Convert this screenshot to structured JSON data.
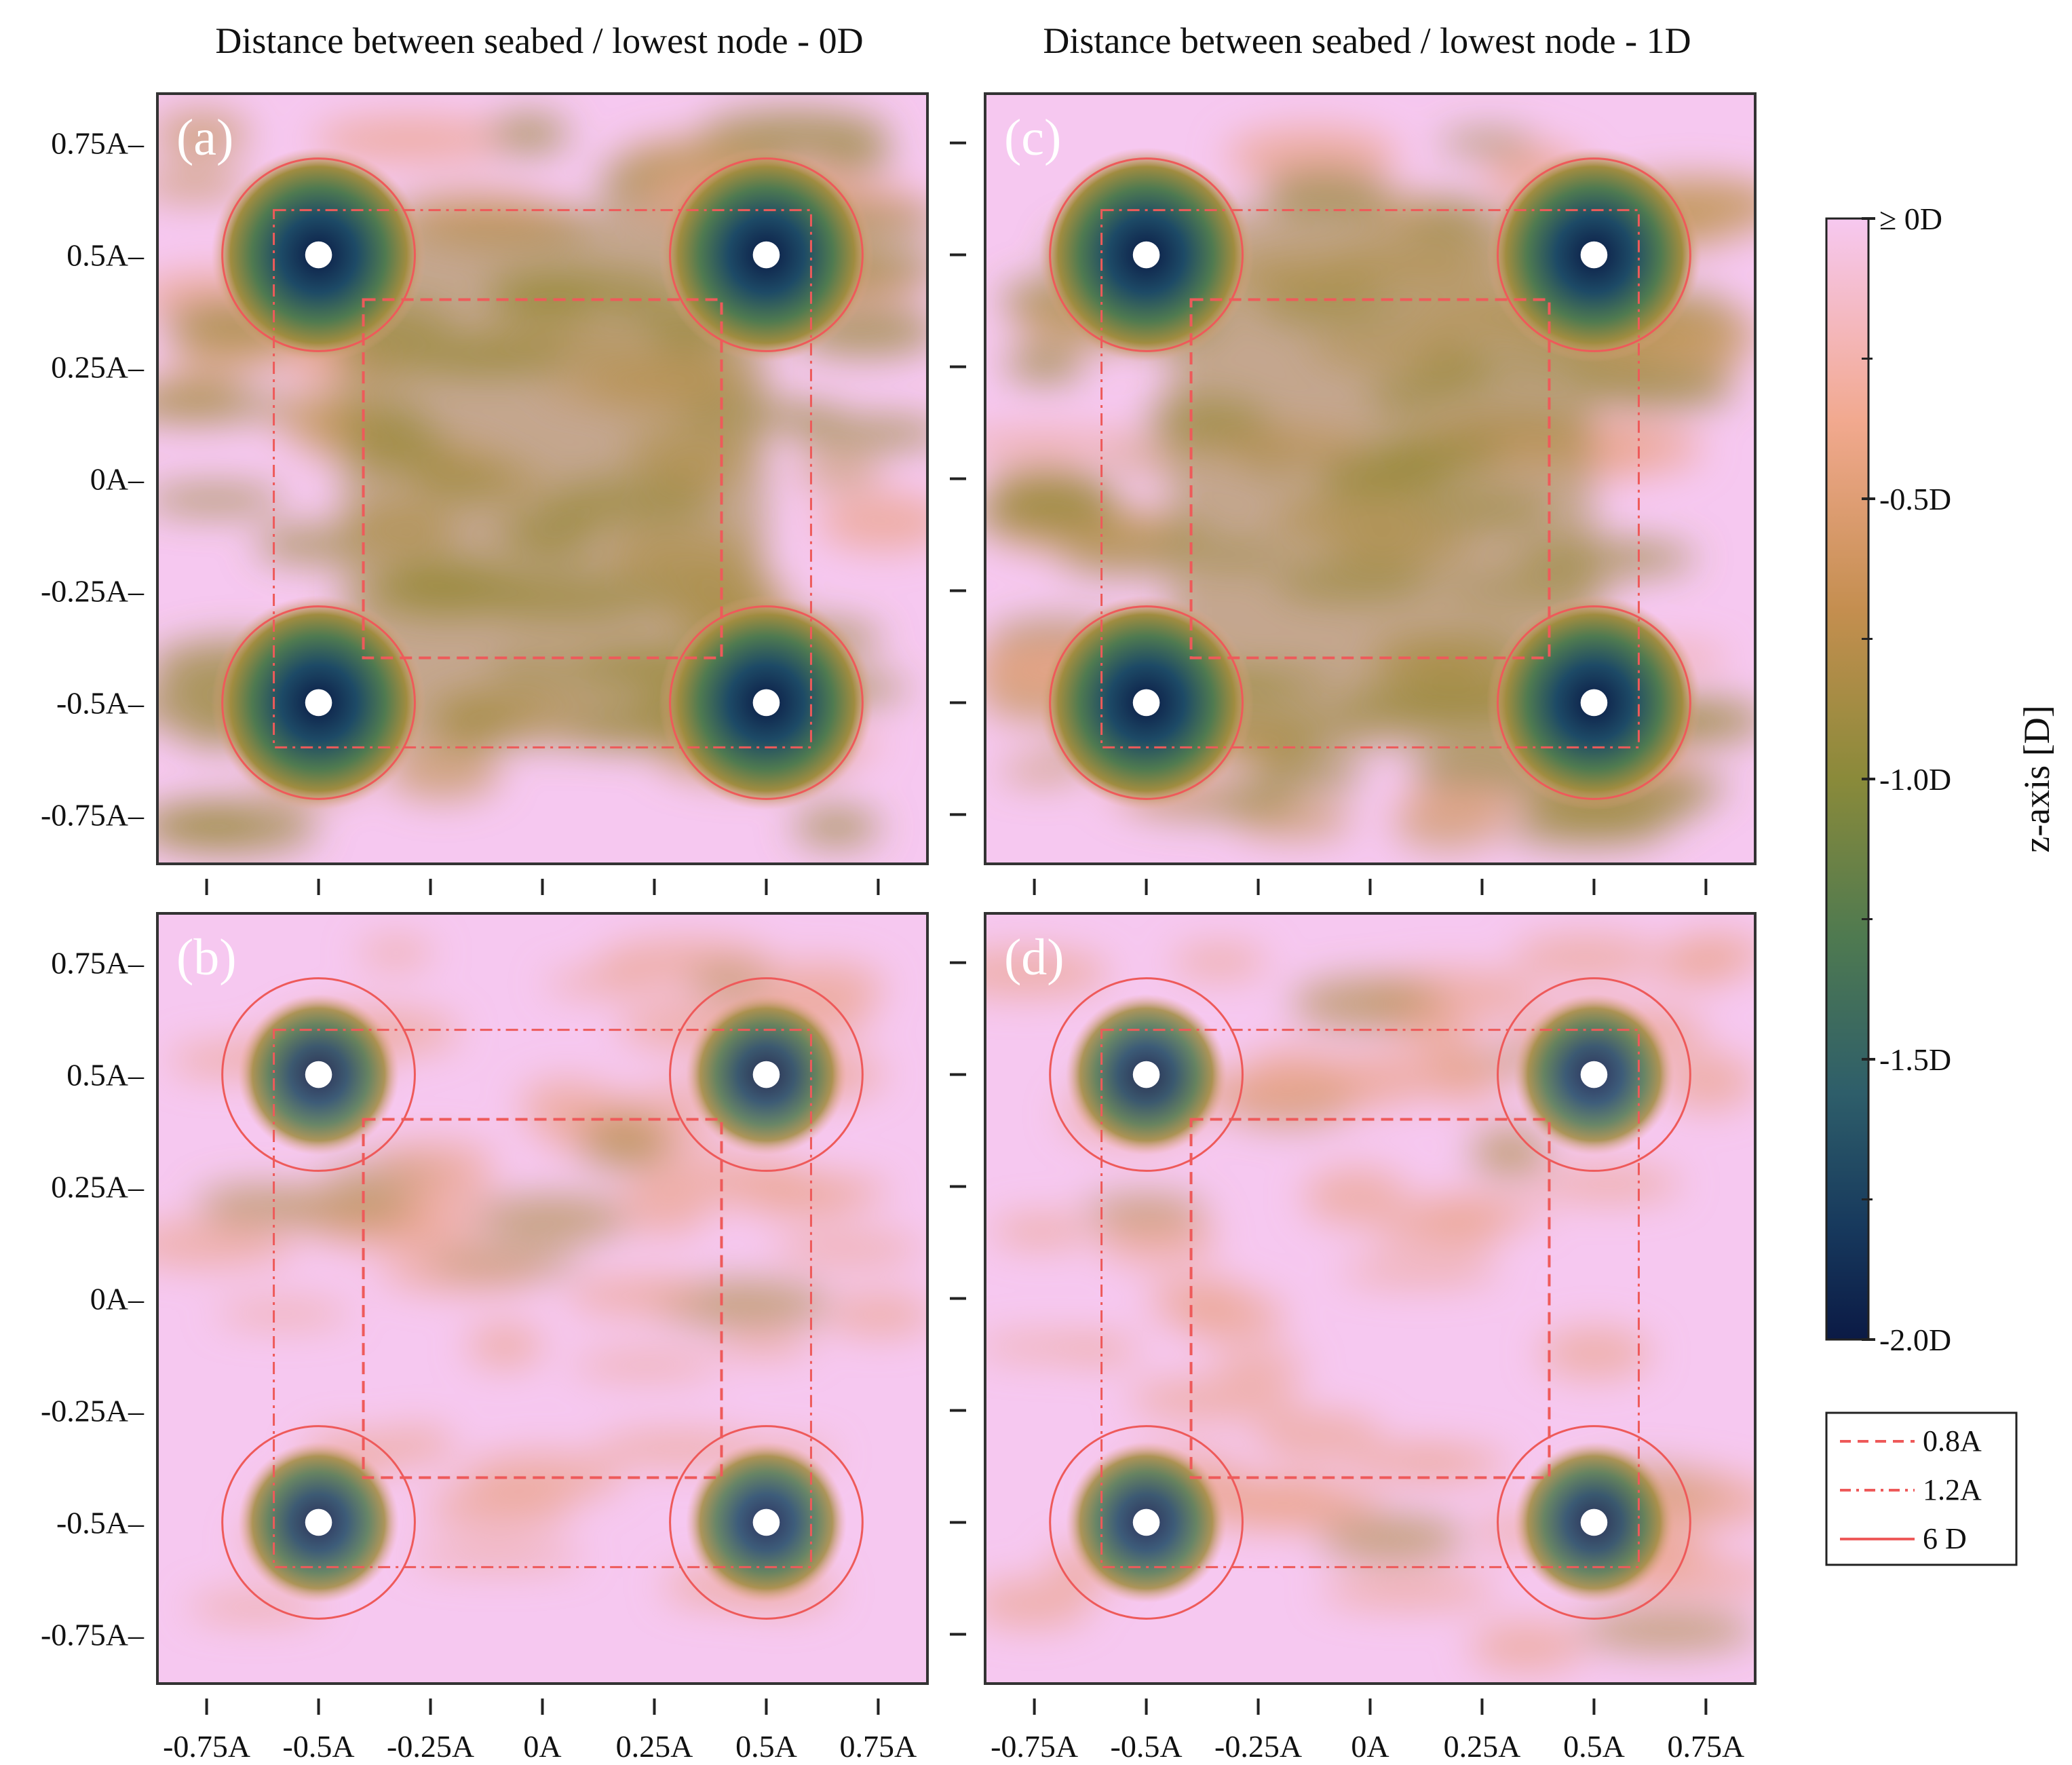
{
  "chart_data": {
    "type": "heatmap",
    "column_titles": [
      "Distance between seabed / lowest node - 0D",
      "Distance between seabed / lowest node - 1D"
    ],
    "panels": [
      {
        "label": "(a)",
        "row": 0,
        "col": 0,
        "intensity": 1.0
      },
      {
        "label": "(b)",
        "row": 1,
        "col": 0,
        "intensity": 0.45
      },
      {
        "label": "(c)",
        "row": 0,
        "col": 1,
        "intensity": 1.05
      },
      {
        "label": "(d)",
        "row": 1,
        "col": 1,
        "intensity": 0.5
      }
    ],
    "x_axis": {
      "range": [
        -0.86,
        0.86
      ],
      "ticks": [
        -0.75,
        -0.5,
        -0.25,
        0,
        0.25,
        0.5,
        0.75
      ],
      "tick_labels": [
        "-0.75A",
        "-0.5A",
        "-0.25A",
        "0A",
        "0.25A",
        "0.5A",
        "0.75A"
      ]
    },
    "y_axis": {
      "range": [
        -0.86,
        0.86
      ],
      "ticks": [
        0.75,
        0.5,
        0.25,
        0,
        -0.25,
        -0.5,
        -0.75
      ],
      "tick_labels": [
        "0.75A",
        "0.5A",
        "0.25A",
        "0A",
        "-0.25A",
        "-0.5A",
        "-0.75A"
      ]
    },
    "nodes": [
      [
        -0.5,
        0.5
      ],
      [
        0.5,
        0.5
      ],
      [
        -0.5,
        -0.5
      ],
      [
        0.5,
        -0.5
      ]
    ],
    "node_circle_radius_label": "6 D",
    "node_circle_radius": 0.215,
    "inner_square_half_width": 0.4,
    "outer_square_half_width": 0.6,
    "colorbar": {
      "label": "z-axis  [D]",
      "range": [
        -2.0,
        0.0
      ],
      "tick_labels": [
        "≥ 0D",
        "-0.5D",
        "-1.0D",
        "-1.5D",
        "-2.0D"
      ],
      "tick_values": [
        0.0,
        -0.5,
        -1.0,
        -1.5,
        -2.0
      ],
      "colors": [
        "#f6c8f0",
        "#f2a98f",
        "#c48e4f",
        "#8a8a3a",
        "#4f7a50",
        "#2e5e6a",
        "#17395d",
        "#0b1a45"
      ]
    },
    "legend": {
      "position": "bottom-right",
      "entries": [
        {
          "label": "0.8A",
          "style": "dashed"
        },
        {
          "label": "1.2A",
          "style": "dash-dot"
        },
        {
          "label": "6 D",
          "style": "solid"
        }
      ]
    },
    "line_color": "#ee5a5a"
  }
}
